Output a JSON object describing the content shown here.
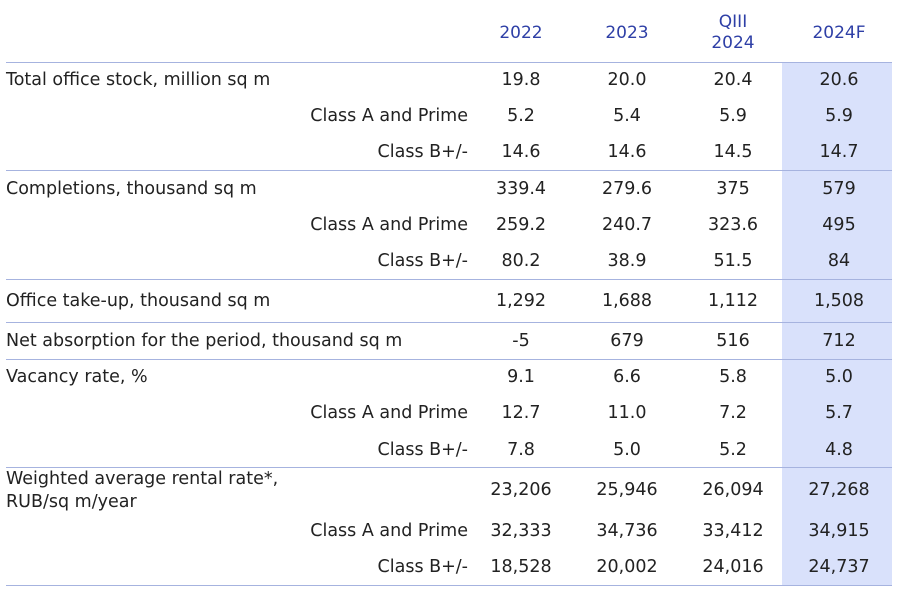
{
  "table": {
    "columns": [
      "2022",
      "2023",
      "QIII\n2024",
      "2024F"
    ],
    "rows": [
      {
        "label": "Total office stock, million sq m",
        "values": [
          "19.8",
          "20.0",
          "20.4",
          "20.6"
        ]
      },
      {
        "label": "Class A and Prime",
        "values": [
          "5.2",
          "5.4",
          "5.9",
          "5.9"
        ]
      },
      {
        "label": "Class B+/-",
        "values": [
          "14.6",
          "14.6",
          "14.5",
          "14.7"
        ]
      },
      {
        "label": "Completions, thousand sq m",
        "values": [
          "339.4",
          "279.6",
          "375",
          "579"
        ]
      },
      {
        "label": "Class A and Prime",
        "values": [
          "259.2",
          "240.7",
          "323.6",
          "495"
        ]
      },
      {
        "label": "Class B+/-",
        "values": [
          "80.2",
          "38.9",
          "51.5",
          "84"
        ]
      },
      {
        "label": "Office take-up, thousand sq m",
        "values": [
          "1,292",
          "1,688",
          "1,112",
          "1,508"
        ]
      },
      {
        "label": "Net absorption for the period, thousand sq m",
        "values": [
          "-5",
          "679",
          "516",
          "712"
        ]
      },
      {
        "label": "Vacancy rate, %",
        "values": [
          "9.1",
          "6.6",
          "5.8",
          "5.0"
        ]
      },
      {
        "label": "Class A and Prime",
        "values": [
          "12.7",
          "11.0",
          "7.2",
          "5.7"
        ]
      },
      {
        "label": "Class B+/-",
        "values": [
          "7.8",
          "5.0",
          "5.2",
          "4.8"
        ]
      },
      {
        "label": "Weighted average rental rate*,\nRUB/sq m/year",
        "values": [
          "23,206",
          "25,946",
          "26,094",
          "27,268"
        ]
      },
      {
        "label": "Class A and Prime",
        "values": [
          "32,333",
          "34,736",
          "33,412",
          "34,915"
        ]
      },
      {
        "label": "Class B+/-",
        "values": [
          "18,528",
          "20,002",
          "24,016",
          "24,737"
        ]
      }
    ]
  },
  "colors": {
    "header_text": "#2e3fa6",
    "forecast_shade": "#d9e1fb",
    "rule": "#a6b3df"
  }
}
